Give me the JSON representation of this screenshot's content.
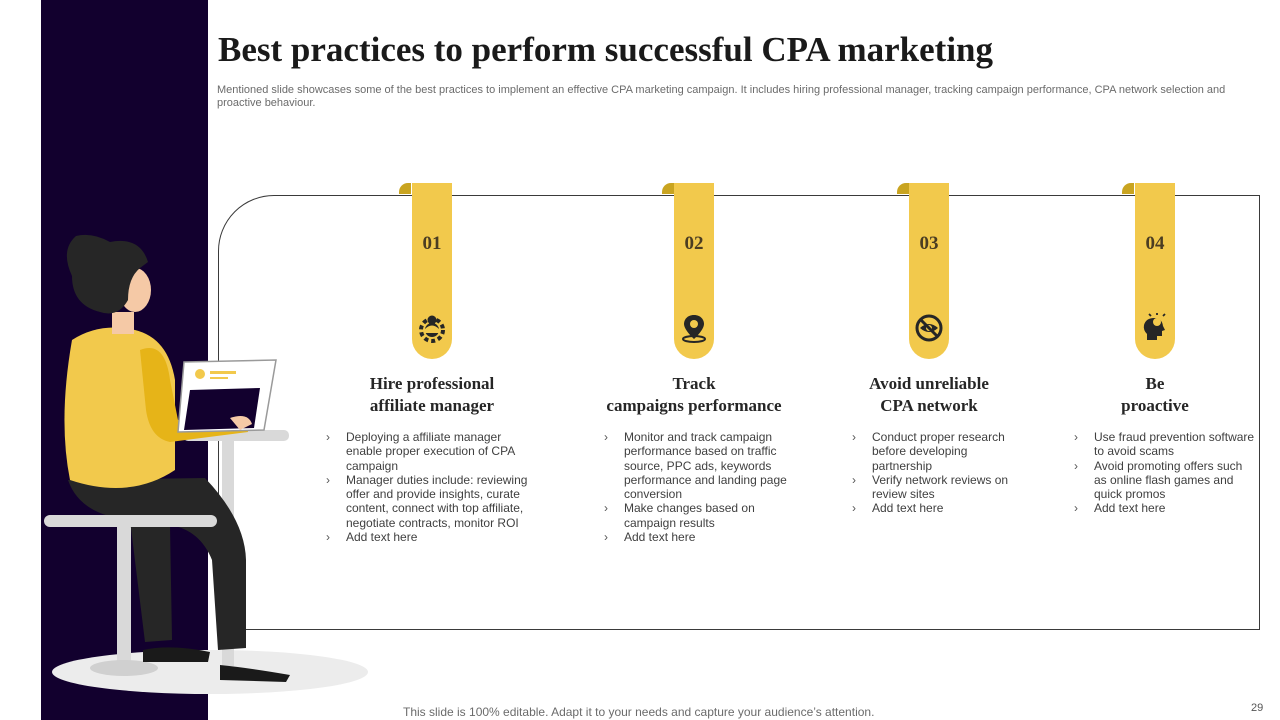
{
  "slide": {
    "title": "Best practices to perform successful CPA marketing",
    "subtitle": "Mentioned slide showcases some of the best practices to implement an effective CPA marketing campaign. It includes hiring professional manager, tracking campaign performance, CPA network selection and proactive behaviour.",
    "footer": "This slide is 100% editable. Adapt it to your needs and capture your audience’s attention.",
    "page_number": "29"
  },
  "colors": {
    "accent": "#f2c94c",
    "accent_dark": "#c9a420",
    "side_band": "#12002e"
  },
  "cards": [
    {
      "number": "01",
      "icon": "manager-gear-icon",
      "title_line1": "Hire professional",
      "title_line2": "affiliate manager",
      "bullets": [
        "Deploying a affiliate manager enable proper execution of CPA campaign",
        "Manager duties include: reviewing offer and provide insights, curate content, connect with top affiliate, negotiate contracts, monitor ROI",
        "Add text here"
      ]
    },
    {
      "number": "02",
      "icon": "location-pin-icon",
      "title_line1": "Track",
      "title_line2": "campaigns performance",
      "bullets": [
        "Monitor and track campaign performance based on traffic source, PPC ads, keywords performance and landing page conversion",
        "Make changes based on campaign results",
        "Add text here"
      ]
    },
    {
      "number": "03",
      "icon": "hidden-eye-icon",
      "title_line1": "Avoid unreliable",
      "title_line2": "CPA network",
      "bullets": [
        "Conduct proper research before developing partnership",
        "Verify network reviews on review sites",
        "Add text here"
      ]
    },
    {
      "number": "04",
      "icon": "head-lightbulb-icon",
      "title_line1": "Be",
      "title_line2": "proactive",
      "bullets": [
        "Use fraud prevention software to avoid scams",
        "Avoid promoting offers such as online flash games and quick promos",
        "Add text here"
      ]
    }
  ]
}
